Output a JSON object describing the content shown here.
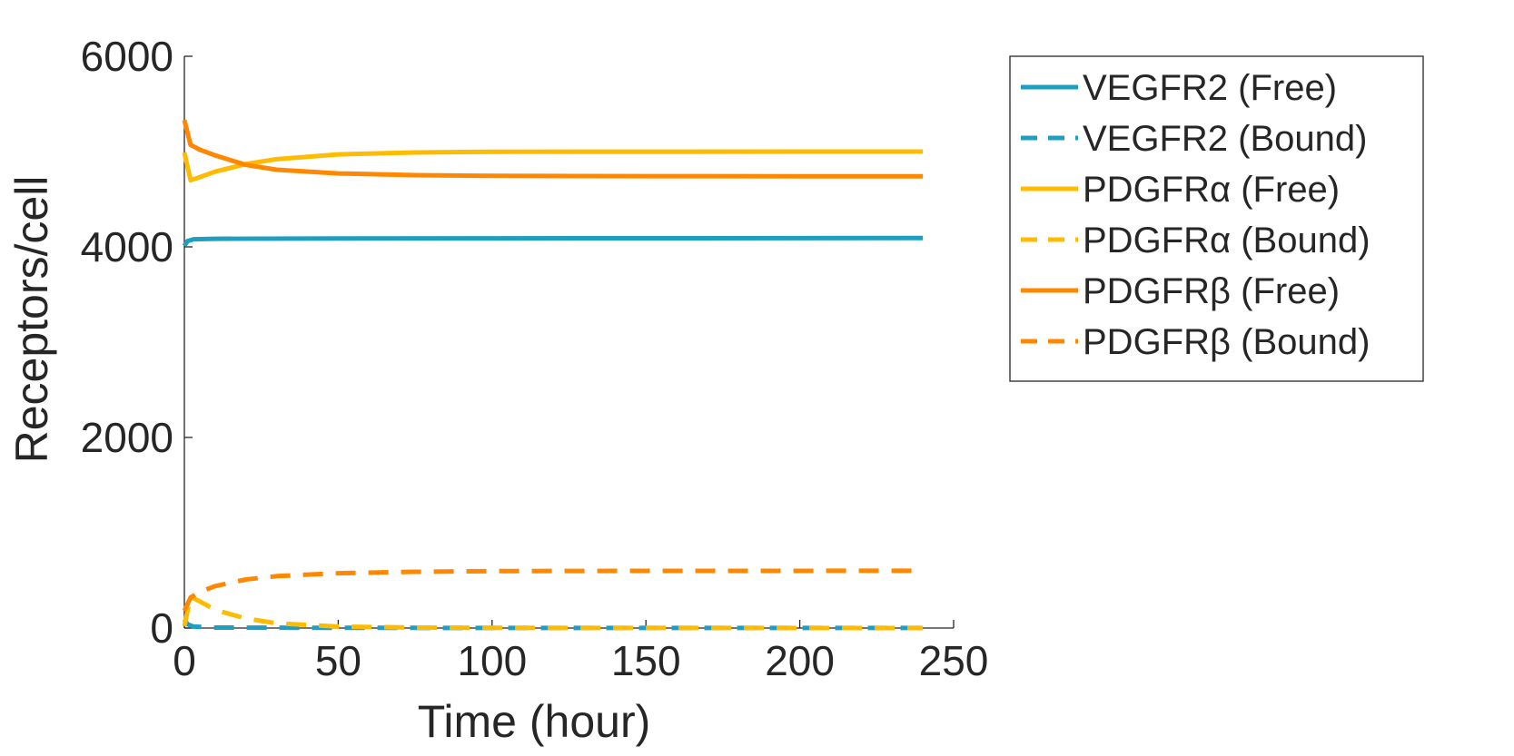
{
  "chart_data": {
    "type": "line",
    "xlabel": "Time (hour)",
    "ylabel": "Receptors/cell",
    "xlim": [
      0,
      250
    ],
    "ylim": [
      0,
      6000
    ],
    "xticks": [
      0,
      50,
      100,
      150,
      200,
      250
    ],
    "yticks": [
      0,
      2000,
      4000,
      6000
    ],
    "grid": false,
    "legend_position": "top-right outside",
    "series": [
      {
        "name": "VEGFR2 (Free)",
        "color": "#1f9fc0",
        "dash": "solid",
        "points": [
          [
            0,
            4010
          ],
          [
            1,
            4060
          ],
          [
            3,
            4080
          ],
          [
            10,
            4085
          ],
          [
            50,
            4088
          ],
          [
            100,
            4090
          ],
          [
            240,
            4092
          ]
        ]
      },
      {
        "name": "VEGFR2 (Bound)",
        "color": "#1f9fc0",
        "dash": "dashed",
        "points": [
          [
            0,
            90
          ],
          [
            1,
            40
          ],
          [
            3,
            15
          ],
          [
            10,
            5
          ],
          [
            50,
            2
          ],
          [
            240,
            1
          ]
        ]
      },
      {
        "name": "PDGFRα (Free)",
        "color": "#ffbb00",
        "dash": "solid",
        "points": [
          [
            0,
            4990
          ],
          [
            2,
            4700
          ],
          [
            4,
            4720
          ],
          [
            10,
            4790
          ],
          [
            20,
            4870
          ],
          [
            30,
            4920
          ],
          [
            50,
            4970
          ],
          [
            75,
            4990
          ],
          [
            100,
            4998
          ],
          [
            240,
            5000
          ]
        ]
      },
      {
        "name": "PDGFRα (Bound)",
        "color": "#ffbb00",
        "dash": "dashed",
        "points": [
          [
            0,
            20
          ],
          [
            2,
            330
          ],
          [
            5,
            280
          ],
          [
            10,
            190
          ],
          [
            20,
            100
          ],
          [
            30,
            50
          ],
          [
            50,
            15
          ],
          [
            75,
            5
          ],
          [
            100,
            2
          ],
          [
            240,
            0
          ]
        ]
      },
      {
        "name": "PDGFRβ (Free)",
        "color": "#ff8800",
        "dash": "solid",
        "points": [
          [
            0,
            5330
          ],
          [
            2,
            5070
          ],
          [
            5,
            5020
          ],
          [
            10,
            4960
          ],
          [
            20,
            4860
          ],
          [
            30,
            4810
          ],
          [
            50,
            4770
          ],
          [
            75,
            4752
          ],
          [
            100,
            4745
          ],
          [
            150,
            4742
          ],
          [
            240,
            4740
          ]
        ]
      },
      {
        "name": "PDGFRβ (Bound)",
        "color": "#ff8800",
        "dash": "dashed",
        "points": [
          [
            0,
            180
          ],
          [
            2,
            320
          ],
          [
            5,
            380
          ],
          [
            10,
            440
          ],
          [
            20,
            510
          ],
          [
            30,
            545
          ],
          [
            50,
            575
          ],
          [
            75,
            590
          ],
          [
            100,
            597
          ],
          [
            150,
            600
          ],
          [
            240,
            601
          ]
        ]
      }
    ]
  }
}
